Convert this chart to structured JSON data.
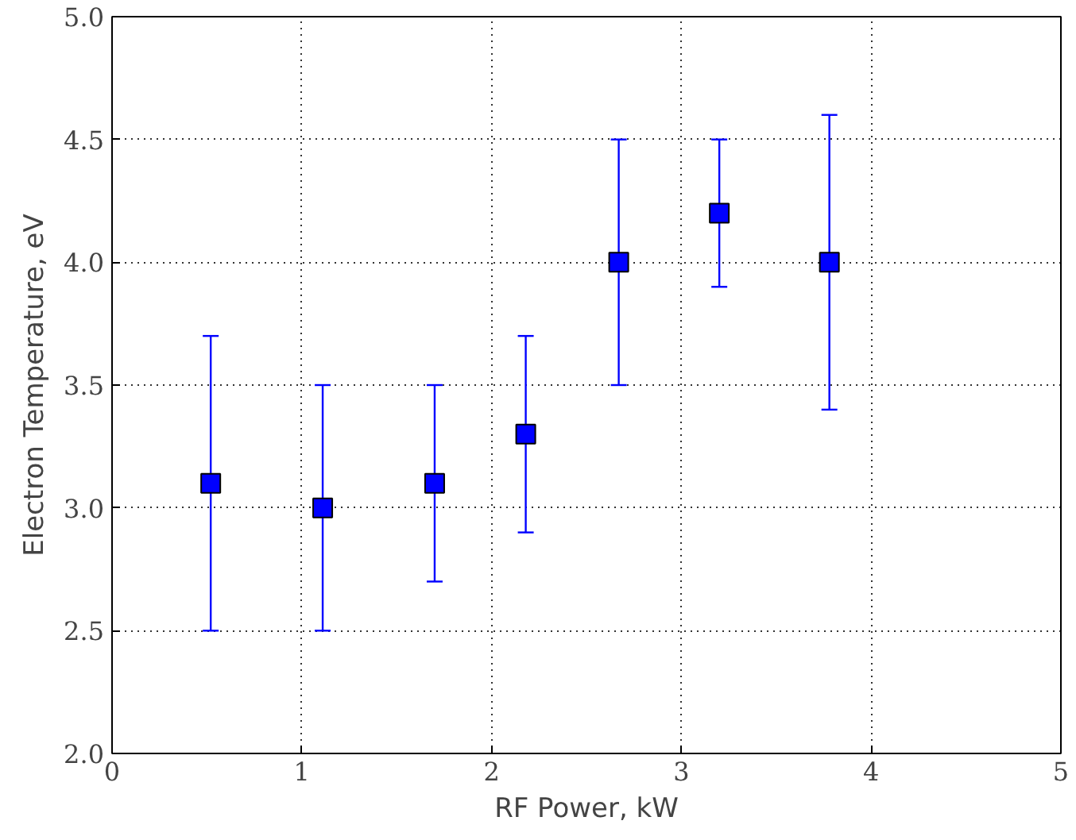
{
  "chart_data": {
    "type": "scatter",
    "xlabel": "RF Power, kW",
    "ylabel": "Electron Temperature, eV",
    "x": [
      0.52,
      1.11,
      1.7,
      2.18,
      2.67,
      3.2,
      3.78
    ],
    "color": "#0000ff",
    "values": [
      3.1,
      3.0,
      3.1,
      3.3,
      4.0,
      4.2,
      4.0
    ],
    "errors": [
      0.6,
      0.5,
      0.4,
      0.4,
      0.5,
      0.3,
      0.6
    ],
    "xlim": [
      0,
      5
    ],
    "ylim": [
      2.0,
      5.0
    ],
    "xticks": [
      0,
      1,
      2,
      3,
      4,
      5
    ],
    "yticks": [
      {
        "value": 2.0,
        "label": "2.0"
      },
      {
        "value": 2.5,
        "label": "2.5"
      },
      {
        "value": 3.0,
        "label": "3.0"
      },
      {
        "value": 3.5,
        "label": "3.5"
      },
      {
        "value": 4.0,
        "label": "4.0"
      },
      {
        "value": 4.5,
        "label": "4.5"
      },
      {
        "value": 5.0,
        "label": "5.0"
      }
    ],
    "grid": true,
    "marker": "square"
  }
}
